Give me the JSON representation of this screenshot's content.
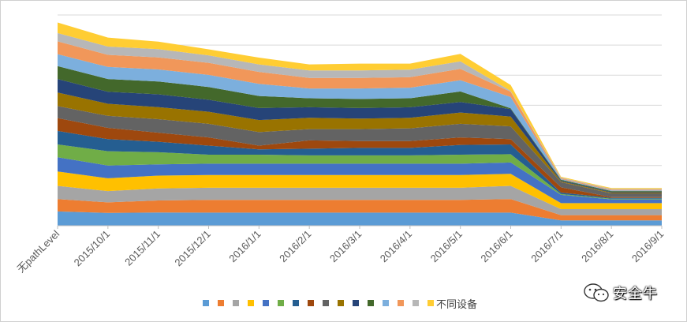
{
  "chart_data": {
    "type": "area",
    "stacked": true,
    "categories": [
      "无pathLevel",
      "2015/10/1",
      "2015/11/1",
      "2015/12/1",
      "2016/1/1",
      "2016/2/1",
      "2016/3/1",
      "2016/4/1",
      "2016/5/1",
      "2016/6/1",
      "2016/7/1",
      "2016/8/1",
      "2016/9/1"
    ],
    "title": "",
    "xlabel": "",
    "ylabel": "",
    "ylim": [
      0,
      14
    ],
    "grid": true,
    "y_tick_labels_visible": false,
    "legend_position": "bottom",
    "series": [
      {
        "name": "",
        "color": "#5b9bd5",
        "values": [
          0.95,
          0.85,
          0.88,
          0.87,
          0.87,
          0.87,
          0.87,
          0.87,
          0.87,
          0.87,
          0.35,
          0.35,
          0.35
        ]
      },
      {
        "name": "",
        "color": "#ed7d31",
        "values": [
          0.82,
          0.7,
          0.8,
          0.85,
          0.85,
          0.85,
          0.85,
          0.85,
          0.85,
          0.9,
          0.35,
          0.35,
          0.35
        ]
      },
      {
        "name": "",
        "color": "#a5a5a5",
        "values": [
          0.88,
          0.75,
          0.8,
          0.8,
          0.8,
          0.8,
          0.8,
          0.8,
          0.8,
          0.88,
          0.4,
          0.4,
          0.4
        ]
      },
      {
        "name": "",
        "color": "#ffc000",
        "values": [
          0.95,
          0.85,
          0.85,
          0.85,
          0.85,
          0.85,
          0.85,
          0.85,
          0.85,
          0.8,
          0.4,
          0.4,
          0.4
        ]
      },
      {
        "name": "",
        "color": "#4472c4",
        "values": [
          0.95,
          0.85,
          0.75,
          0.75,
          0.75,
          0.75,
          0.75,
          0.75,
          0.75,
          0.75,
          0.55,
          0.25,
          0.25
        ]
      },
      {
        "name": "",
        "color": "#70ad47",
        "values": [
          0.85,
          0.95,
          0.8,
          0.6,
          0.6,
          0.55,
          0.55,
          0.55,
          0.6,
          0.55,
          0.05,
          0.05,
          0.05
        ]
      },
      {
        "name": "",
        "color": "#255e91",
        "values": [
          0.9,
          0.8,
          0.7,
          0.6,
          0.35,
          0.45,
          0.5,
          0.5,
          0.65,
          0.65,
          0.1,
          0.05,
          0.05
        ]
      },
      {
        "name": "",
        "color": "#9e480e",
        "values": [
          0.85,
          0.75,
          0.6,
          0.55,
          0.25,
          0.55,
          0.45,
          0.45,
          0.5,
          0.35,
          0.35,
          0.05,
          0.05
        ]
      },
      {
        "name": "",
        "color": "#636363",
        "values": [
          0.8,
          0.8,
          0.9,
          0.9,
          0.9,
          0.75,
          0.8,
          0.85,
          0.9,
          0.85,
          0.35,
          0.25,
          0.25
        ]
      },
      {
        "name": "",
        "color": "#997300",
        "values": [
          0.9,
          0.8,
          0.8,
          0.8,
          0.8,
          0.75,
          0.7,
          0.7,
          0.75,
          0.65,
          0.05,
          0.05,
          0.05
        ]
      },
      {
        "name": "",
        "color": "#264478",
        "values": [
          0.9,
          0.8,
          0.85,
          0.8,
          0.8,
          0.7,
          0.7,
          0.7,
          0.7,
          0.5,
          0.05,
          0.05,
          0.05
        ]
      },
      {
        "name": "",
        "color": "#43682b",
        "values": [
          0.85,
          0.85,
          0.85,
          0.85,
          0.8,
          0.6,
          0.6,
          0.6,
          0.7,
          0.05,
          0.05,
          0.05,
          0.05
        ]
      },
      {
        "name": "",
        "color": "#7cafdd",
        "values": [
          0.8,
          0.8,
          0.8,
          0.8,
          0.8,
          0.65,
          0.7,
          0.7,
          0.75,
          0.75,
          0.05,
          0.05,
          0.05
        ]
      },
      {
        "name": "",
        "color": "#f1975a",
        "values": [
          0.85,
          0.8,
          0.8,
          0.8,
          0.8,
          0.7,
          0.7,
          0.7,
          0.75,
          0.35,
          0.05,
          0.05,
          0.05
        ]
      },
      {
        "name": "",
        "color": "#b7b7b7",
        "values": [
          0.55,
          0.55,
          0.55,
          0.5,
          0.5,
          0.5,
          0.5,
          0.5,
          0.5,
          0.05,
          0.05,
          0.05,
          0.05
        ]
      },
      {
        "name": "不同设备",
        "color": "#ffcd33",
        "values": [
          0.7,
          0.6,
          0.5,
          0.4,
          0.45,
          0.4,
          0.45,
          0.4,
          0.5,
          0.4,
          0.05,
          0.05,
          0.05
        ]
      }
    ]
  },
  "watermark": {
    "text": "安全牛",
    "icon": "wechat-icon"
  }
}
